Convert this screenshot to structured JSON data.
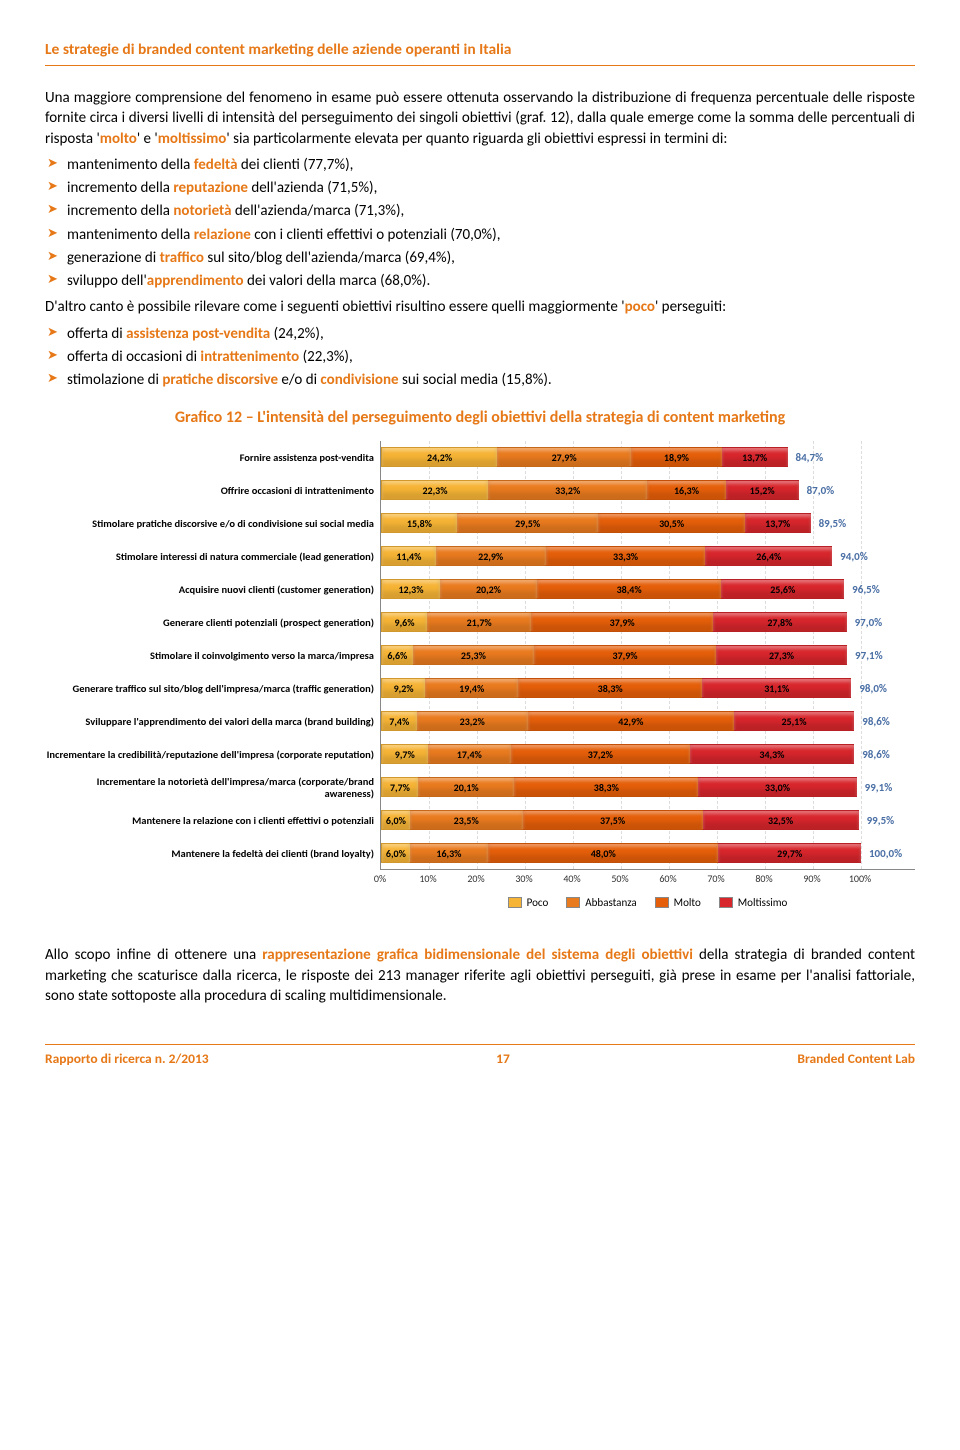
{
  "header": {
    "title": "Le strategie di branded content marketing delle aziende operanti in Italia"
  },
  "p1a": "Una maggiore comprensione del fenomeno in esame può essere ottenuta osservando la distribuzione di frequenza percentuale delle risposte fornite circa i diversi livelli di intensità del perseguimento dei singoli obiettivi (graf. 12), dalla quale emerge come la somma delle percentuali di risposta '",
  "p1b": "' e '",
  "p1c": "' sia particolarmente elevata per quanto riguarda gli obiettivi espressi in termini di:",
  "hl_molto": "molto",
  "hl_moltissimo": "moltissimo",
  "list1": [
    {
      "pre": "mantenimento della ",
      "hl": "fedeltà",
      "post": " dei clienti (77,7%),"
    },
    {
      "pre": "incremento della ",
      "hl": "reputazione",
      "post": " dell'azienda (71,5%),"
    },
    {
      "pre": "incremento della ",
      "hl": "notorietà",
      "post": " dell'azienda/marca (71,3%),"
    },
    {
      "pre": "mantenimento della ",
      "hl": "relazione",
      "post": " con i clienti effettivi o potenziali (70,0%),"
    },
    {
      "pre": "generazione di ",
      "hl": "traffico",
      "post": " sul sito/blog dell'azienda/marca (69,4%),"
    },
    {
      "pre": "sviluppo dell'",
      "hl": "apprendimento",
      "post": " dei valori della marca (68,0%)."
    }
  ],
  "p2a": "D'altro canto è possibile rilevare come i seguenti obiettivi risultino essere quelli maggiormente '",
  "p2b": "' perseguiti:",
  "hl_poco": "poco",
  "list2": [
    {
      "pre": "offerta di ",
      "hl": "assistenza post-vendita",
      "post": " (24,2%),"
    },
    {
      "pre": "offerta di occasioni di ",
      "hl": "intrattenimento",
      "post": " (22,3%),"
    },
    {
      "pre": "stimolazione di ",
      "hl": "pratiche discorsive",
      "post": " e/o di ",
      "hl2": "condivisione",
      "post2": " sui social media (15,8%)."
    }
  ],
  "chart": {
    "title": "Grafico 12 – L'intensità del perseguimento degli obiettivi della strategia di content marketing",
    "colors": {
      "poco": "#f6b436",
      "abbastanza": "#e97b1f",
      "molto": "#e55f0a",
      "moltissimo": "#d7262c"
    },
    "legend": [
      "Poco",
      "Abbastanza",
      "Molto",
      "Moltissimo"
    ],
    "xticks": [
      "0%",
      "10%",
      "20%",
      "30%",
      "40%",
      "50%",
      "60%",
      "70%",
      "80%",
      "90%",
      "100%"
    ],
    "rows": [
      {
        "label": "Fornire assistenza post-vendita",
        "v": [
          24.2,
          27.9,
          18.9,
          13.7
        ],
        "tot": "84,7%"
      },
      {
        "label": "Offrire occasioni di intrattenimento",
        "v": [
          22.3,
          33.2,
          16.3,
          15.2
        ],
        "tot": "87,0%"
      },
      {
        "label": "Stimolare pratiche discorsive e/o di condivisione sui social media",
        "v": [
          15.8,
          29.5,
          30.5,
          13.7
        ],
        "tot": "89,5%"
      },
      {
        "label": "Stimolare interessi di natura commerciale (lead generation)",
        "v": [
          11.4,
          22.9,
          33.3,
          26.4
        ],
        "tot": "94,0%"
      },
      {
        "label": "Acquisire nuovi clienti (customer generation)",
        "v": [
          12.3,
          20.2,
          38.4,
          25.6
        ],
        "tot": "96,5%"
      },
      {
        "label": "Generare clienti potenziali (prospect generation)",
        "v": [
          9.6,
          21.7,
          37.9,
          27.8
        ],
        "tot": "97,0%"
      },
      {
        "label": "Stimolare il coinvolgimento verso la marca/impresa",
        "v": [
          6.6,
          25.3,
          37.9,
          27.3
        ],
        "tot": "97,1%"
      },
      {
        "label": "Generare traffico sul sito/blog dell'impresa/marca (traffic generation)",
        "v": [
          9.2,
          19.4,
          38.3,
          31.1
        ],
        "tot": "98,0%"
      },
      {
        "label": "Sviluppare l'apprendimento dei valori della marca (brand building)",
        "v": [
          7.4,
          23.2,
          42.9,
          25.1
        ],
        "tot": "98,6%"
      },
      {
        "label": "Incrementare la credibilità/reputazione dell'impresa (corporate reputation)",
        "v": [
          9.7,
          17.4,
          37.2,
          34.3
        ],
        "tot": "98,6%"
      },
      {
        "label": "Incrementare la notorietà dell'impresa/marca (corporate/brand awareness)",
        "v": [
          7.7,
          20.1,
          38.3,
          33.0
        ],
        "tot": "99,1%"
      },
      {
        "label": "Mantenere la relazione con i clienti effettivi o potenziali",
        "v": [
          6.0,
          23.5,
          37.5,
          32.5
        ],
        "tot": "99,5%"
      },
      {
        "label": "Mantenere la fedeltà dei clienti (brand loyalty)",
        "v": [
          6.0,
          16.3,
          48.0,
          29.7
        ],
        "tot": "100,0%"
      }
    ]
  },
  "p3a": "Allo scopo infine di ottenere una ",
  "p3hl": "rappresentazione grafica bidimensionale del sistema degli obiettivi",
  "p3b": " della strategia di branded content marketing che scaturisce dalla ricerca, le risposte dei 213 manager riferite agli obiettivi perseguiti, già prese in esame per l'analisi fattoriale, sono state sottoposte alla procedura di scaling multidimensionale.",
  "footer": {
    "left": "Rapporto di ricerca n. 2/2013",
    "page": "17",
    "right": "Branded Content Lab"
  }
}
